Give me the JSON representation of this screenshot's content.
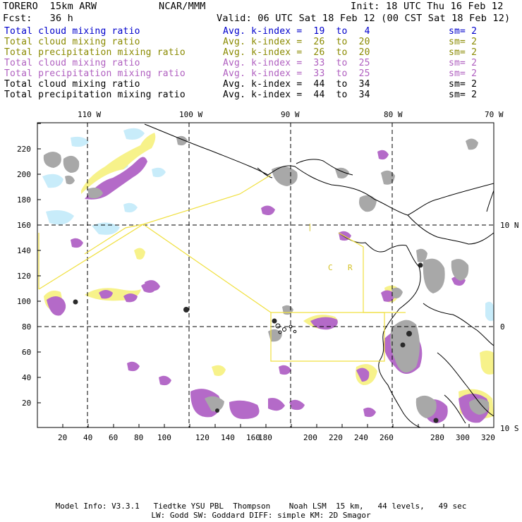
{
  "header": {
    "model": "TORERO  15km ARW",
    "org": "NCAR/MMM",
    "init": "Init: 18 UTC Thu 16 Feb 12",
    "fcst": "Fcst:   36 h",
    "valid": "Valid: 06 UTC Sat 18 Feb 12 (00 CST Sat 18 Feb 12)"
  },
  "legend": [
    {
      "name": "Total cloud mixing ratio",
      "kidx": "Avg. k-index =  19  to   4",
      "sm": "sm= 2",
      "color": "#0000cc"
    },
    {
      "name": "Total cloud mixing ratio",
      "kidx": "Avg. k-index =  26  to  20",
      "sm": "sm= 2",
      "color": "#8a8a00"
    },
    {
      "name": "Total precipitation mixing ratio",
      "kidx": "Avg. k-index =  26  to  20",
      "sm": "sm= 2",
      "color": "#8a8a00"
    },
    {
      "name": "Total cloud mixing ratio",
      "kidx": "Avg. k-index =  33  to  25",
      "sm": "sm= 2",
      "color": "#b060c0"
    },
    {
      "name": "Total precipitation mixing ratio",
      "kidx": "Avg. k-index =  33  to  25",
      "sm": "sm= 2",
      "color": "#b060c0"
    },
    {
      "name": "Total cloud mixing ratio",
      "kidx": "Avg. k-index =  44  to  34",
      "sm": "sm= 2",
      "color": "#000000"
    },
    {
      "name": "Total precipitation mixing ratio",
      "kidx": "Avg. k-index =  44  to  34",
      "sm": "sm= 2",
      "color": "#000000"
    }
  ],
  "map": {
    "x_ticks": [
      "20",
      "40",
      "60",
      "80",
      "100",
      "120",
      "140",
      "160",
      "180",
      "200",
      "220",
      "240",
      "260",
      "280",
      "300",
      "320"
    ],
    "y_ticks": [
      "20",
      "40",
      "60",
      "80",
      "100",
      "120",
      "140",
      "160",
      "180",
      "200",
      "220"
    ],
    "lon_labels": [
      "110 W",
      "100 W",
      "90 W",
      "80 W",
      "70 W"
    ],
    "lat_labels": [
      "10 N",
      "0",
      "10 S"
    ],
    "region_labels": [
      "C",
      "R"
    ],
    "colors": {
      "light_blue": "#c8ecfa",
      "yellow": "#f7f28a",
      "purple": "#b46ac8",
      "gray": "#a8a8a8",
      "dark": "#2a2a2a",
      "box_yellow": "#f0e040"
    }
  },
  "footer": {
    "line1": "Model Info: V3.3.1   Tiedtke YSU PBL  Thompson    Noah LSM  15 km,   44 levels,   49 sec",
    "line2": "LW: Godd SW: Goddard DIFF: simple KM: 2D Smagor"
  }
}
